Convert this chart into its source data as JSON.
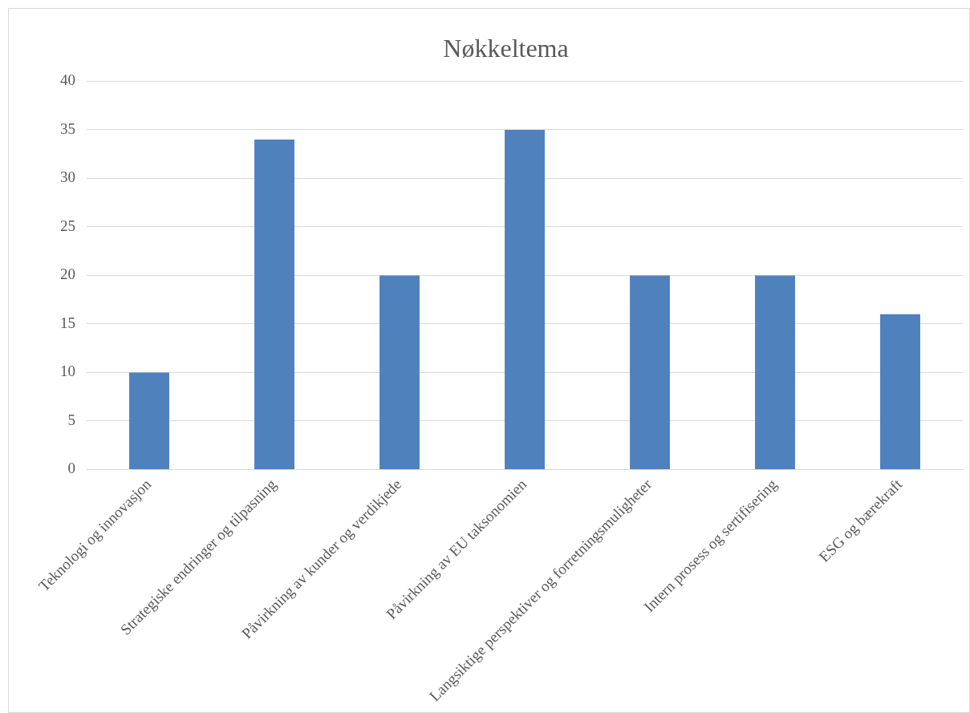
{
  "chart_data": {
    "type": "bar",
    "title": "Nøkkeltema",
    "categories": [
      "Teknologi og innovasjon",
      "Strategiske endringer og tilpasning",
      "Påvirkning av kunder og verdikjede",
      "Påvirkning av EU taksonomien",
      "Langsiktige perspektiver og forretningsmuligheter",
      "Intern prosess og sertifisering",
      "ESG og bærekraft"
    ],
    "values": [
      10,
      34,
      20,
      35,
      20,
      20,
      16
    ],
    "color": "#4f81bd",
    "ylim": [
      0,
      40
    ],
    "yticks": [
      0,
      5,
      10,
      15,
      20,
      25,
      30,
      35,
      40
    ],
    "grid": "y",
    "legend": false
  }
}
